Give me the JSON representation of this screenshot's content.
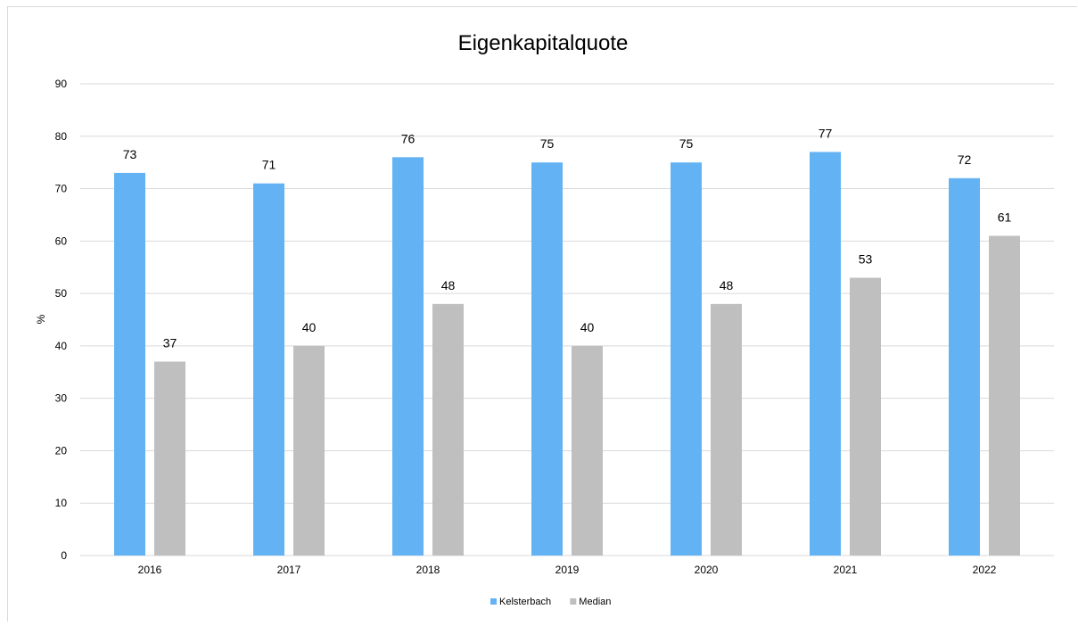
{
  "chart_data": {
    "type": "bar",
    "title": "Eigenkapitalquote",
    "ylabel": "%",
    "xlabel": "",
    "categories": [
      "2016",
      "2017",
      "2018",
      "2019",
      "2020",
      "2021",
      "2022"
    ],
    "series": [
      {
        "name": "Kelsterbach",
        "values": [
          73,
          71,
          76,
          75,
          75,
          77,
          72
        ],
        "color": "#63b3f4"
      },
      {
        "name": "Median",
        "values": [
          37,
          40,
          48,
          40,
          48,
          53,
          61
        ],
        "color": "#bfbfbf"
      }
    ],
    "ylim": [
      0,
      90
    ],
    "yticks": [
      "0",
      "10",
      "20",
      "30",
      "40",
      "50",
      "60",
      "70",
      "80",
      "90"
    ],
    "grid": true,
    "gridColor": "#d9d9d9",
    "legend": "bottom-center"
  }
}
